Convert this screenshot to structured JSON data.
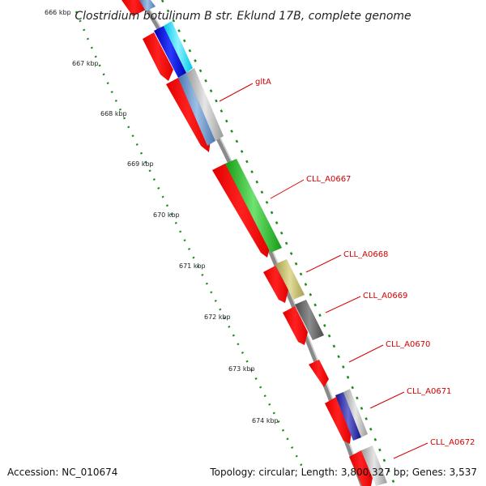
{
  "title": "Clostridium botulinum B str. Eklund 17B, complete genome",
  "footer": {
    "accession": "Accession: NC_010674",
    "summary": "Topology: circular; Length: 3,800,327 bp; Genes: 3,537"
  },
  "ticks": [
    "666 kbp",
    "667 kbp",
    "668 kbp",
    "669 kbp",
    "670 kbp",
    "671 kbp",
    "672 kbp",
    "673 kbp",
    "674 kbp"
  ],
  "genes": [
    {
      "name": "gltA",
      "color": "#d40000"
    },
    {
      "name": "CLL_A0667",
      "color": "#d40000"
    },
    {
      "name": "CLL_A0668",
      "color": "#d40000"
    },
    {
      "name": "CLL_A0669",
      "color": "#d40000"
    },
    {
      "name": "CLL_A0670",
      "color": "#d40000"
    },
    {
      "name": "CLL_A0671",
      "color": "#d40000"
    },
    {
      "name": "CLL_A0672",
      "color": "#d40000"
    }
  ],
  "colors": {
    "cds": "#ff0000",
    "backbone": "#8a8a8a",
    "tick_dots": "#1e8a1e"
  }
}
